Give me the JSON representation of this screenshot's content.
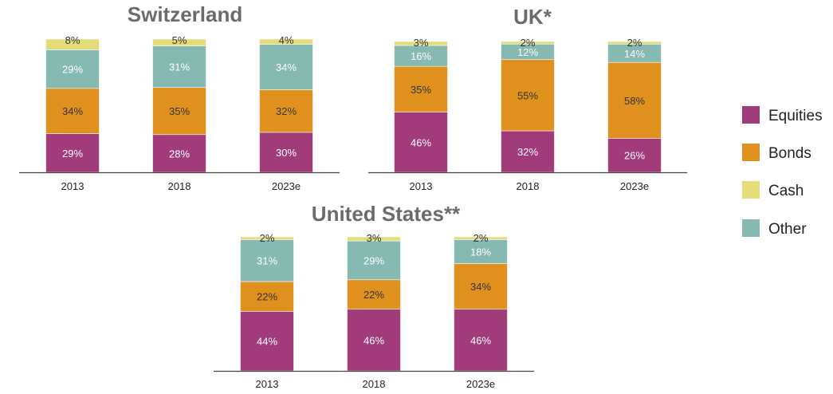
{
  "chart_data": [
    {
      "type": "bar",
      "stacked": true,
      "title": "Switzerland",
      "categories": [
        "2013",
        "2018",
        "2023e"
      ],
      "series": [
        {
          "name": "Equities",
          "values": [
            29,
            28,
            30
          ],
          "labels": [
            "29%",
            "28%",
            "30%"
          ]
        },
        {
          "name": "Bonds",
          "values": [
            34,
            35,
            32
          ],
          "labels": [
            "34%",
            "35%",
            "32%"
          ]
        },
        {
          "name": "Other",
          "values": [
            29,
            31,
            34
          ],
          "labels": [
            "29%",
            "31%",
            "34%"
          ]
        },
        {
          "name": "Cash",
          "values": [
            8,
            5,
            4
          ],
          "labels": [
            "8%",
            "5%",
            "4%"
          ]
        }
      ],
      "ylim": [
        0,
        100
      ]
    },
    {
      "type": "bar",
      "stacked": true,
      "title": "UK*",
      "categories": [
        "2013",
        "2018",
        "2023e"
      ],
      "series": [
        {
          "name": "Equities",
          "values": [
            46,
            32,
            26
          ],
          "labels": [
            "46%",
            "32%",
            "26%"
          ]
        },
        {
          "name": "Bonds",
          "values": [
            35,
            55,
            58
          ],
          "labels": [
            "35%",
            "55%",
            "58%"
          ]
        },
        {
          "name": "Other",
          "values": [
            16,
            12,
            14
          ],
          "labels": [
            "16%",
            "12%",
            "14%"
          ]
        },
        {
          "name": "Cash",
          "values": [
            3,
            2,
            2
          ],
          "labels": [
            "3%",
            "2%",
            "2%"
          ]
        }
      ],
      "ylim": [
        0,
        100
      ]
    },
    {
      "type": "bar",
      "stacked": true,
      "title": "United States**",
      "categories": [
        "2013",
        "2018",
        "2023e"
      ],
      "series": [
        {
          "name": "Equities",
          "values": [
            44,
            46,
            46
          ],
          "labels": [
            "44%",
            "46%",
            "46%"
          ]
        },
        {
          "name": "Bonds",
          "values": [
            22,
            22,
            34
          ],
          "labels": [
            "22%",
            "22%",
            "34%"
          ]
        },
        {
          "name": "Other",
          "values": [
            31,
            29,
            18
          ],
          "labels": [
            "31%",
            "29%",
            "18%"
          ]
        },
        {
          "name": "Cash",
          "values": [
            2,
            3,
            2
          ],
          "labels": [
            "2%",
            "3%",
            "2%"
          ]
        }
      ],
      "ylim": [
        0,
        100
      ]
    }
  ],
  "legend": {
    "placement": "right",
    "items": [
      {
        "name": "Equities",
        "color": "#a13b7a"
      },
      {
        "name": "Bonds",
        "color": "#e0901c"
      },
      {
        "name": "Cash",
        "color": "#e3dc78"
      },
      {
        "name": "Other",
        "color": "#85b9b2"
      }
    ]
  },
  "colors": {
    "Equities": "#a13b7a",
    "Bonds": "#e0901c",
    "Cash": "#e3dc78",
    "Other": "#85b9b2",
    "label_light": "#ffffff",
    "label_dark": "#333333"
  }
}
